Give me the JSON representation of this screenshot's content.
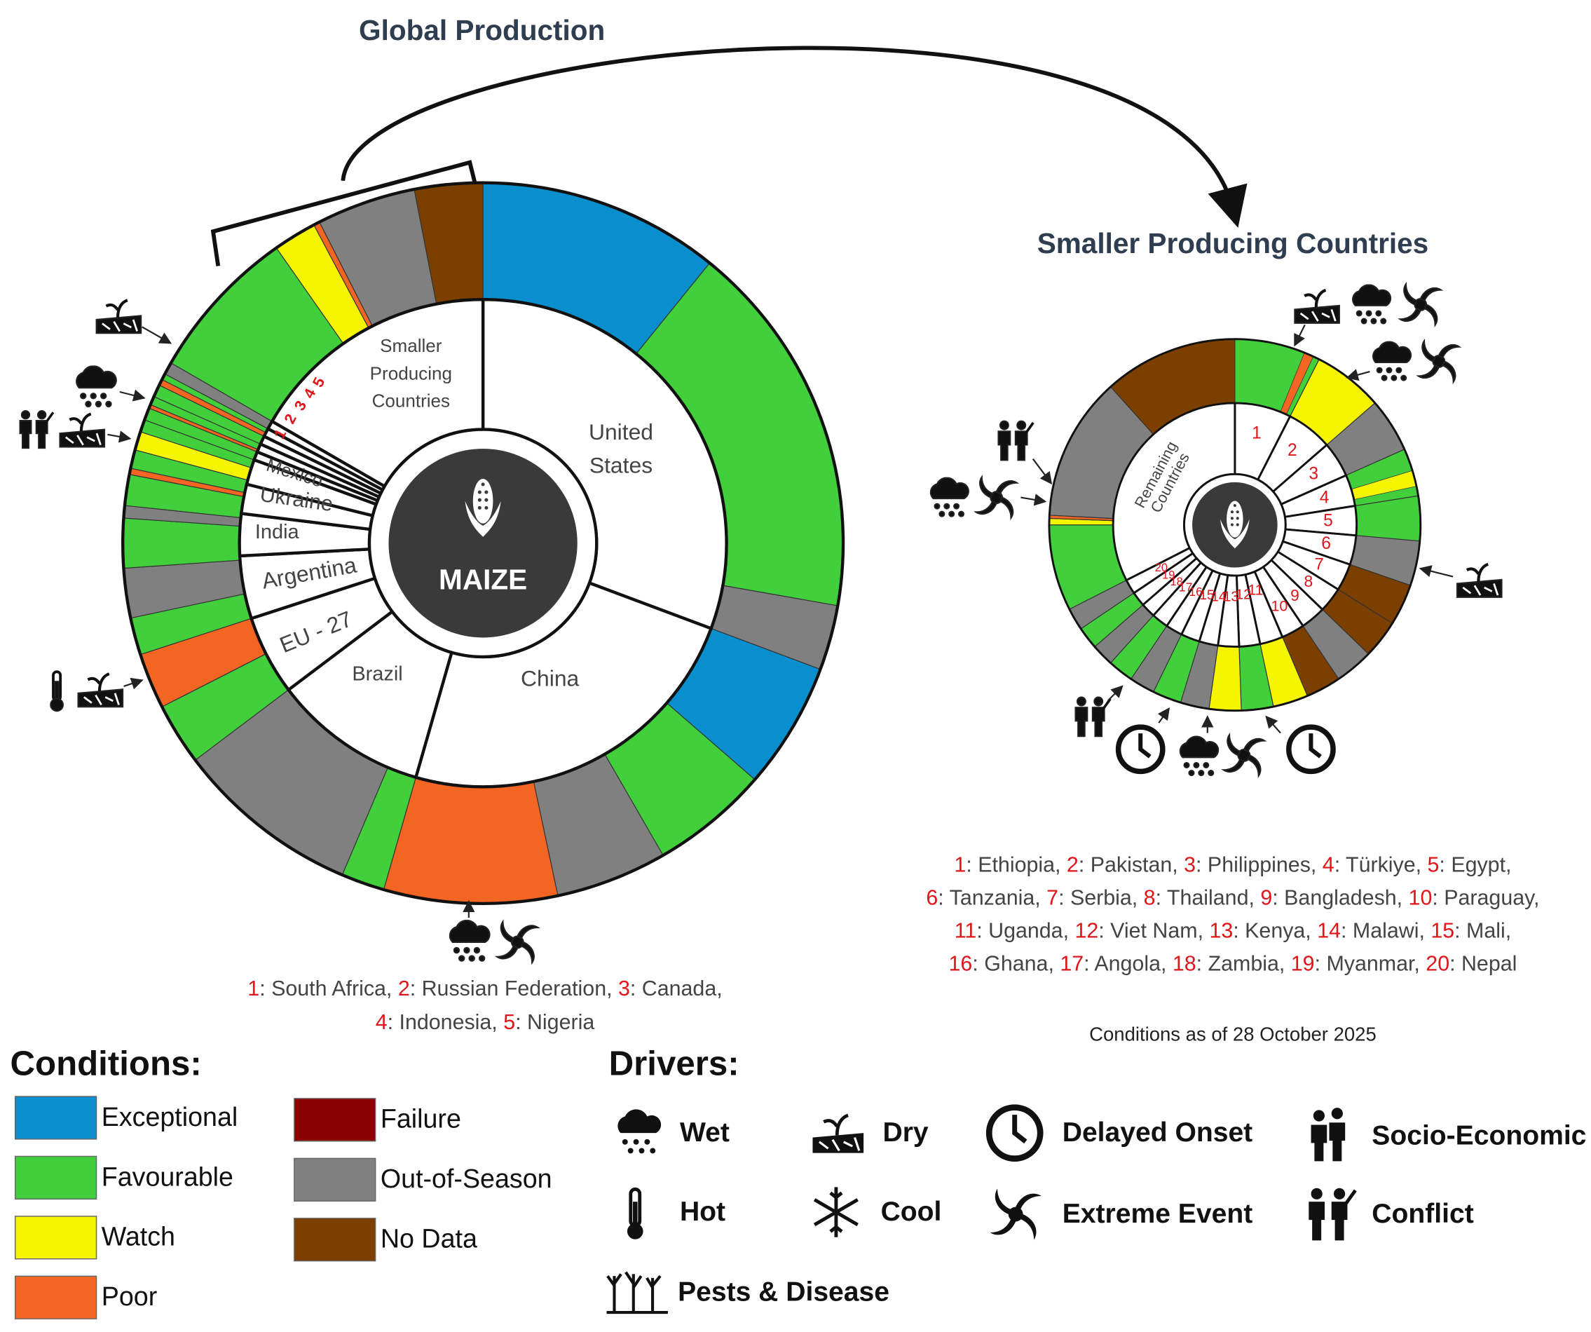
{
  "titles": {
    "global": "Global Production",
    "smaller": "Smaller Producing Countries"
  },
  "crop": "MAIZE",
  "global_wheel": {
    "countries": [
      {
        "lines": [
          "United",
          "States"
        ]
      },
      {
        "lines": [
          "China"
        ]
      },
      {
        "lines": [
          "Brazil"
        ]
      },
      {
        "lines": [
          "EU - 27"
        ]
      },
      {
        "lines": [
          "Argentina"
        ]
      },
      {
        "lines": [
          "India"
        ]
      },
      {
        "lines": [
          "Ukraine"
        ]
      },
      {
        "lines": [
          "Mexico"
        ]
      },
      {
        "lines": [
          "1"
        ]
      },
      {
        "lines": [
          "2"
        ]
      },
      {
        "lines": [
          "3"
        ]
      },
      {
        "lines": [
          "4"
        ]
      },
      {
        "lines": [
          "5"
        ]
      },
      {
        "lines": [
          "Smaller",
          "Producing",
          "Countries"
        ]
      }
    ],
    "key": [
      [
        {
          "num": "1",
          "text": ": South Africa, "
        },
        {
          "num": "2",
          "text": ": Russian Federation, "
        },
        {
          "num": "3",
          "text": ": Canada,"
        }
      ],
      [
        {
          "num": "4",
          "text": ": Indonesia, "
        },
        {
          "num": "5",
          "text": ": Nigeria"
        }
      ]
    ]
  },
  "smaller_wheel": {
    "remaining": [
      "Remaining",
      "Countries"
    ],
    "numbers": [
      "1",
      "2",
      "3",
      "4",
      "5",
      "6",
      "7",
      "8",
      "9",
      "10",
      "11",
      "12",
      "13",
      "14",
      "15",
      "16",
      "17",
      "18",
      "19",
      "20"
    ],
    "key": [
      [
        {
          "num": "1",
          "text": ": Ethiopia, "
        },
        {
          "num": "2",
          "text": ": Pakistan, "
        },
        {
          "num": "3",
          "text": ": Philippines, "
        },
        {
          "num": "4",
          "text": ": Türkiye, "
        },
        {
          "num": "5",
          "text": ": Egypt,"
        }
      ],
      [
        {
          "num": "6",
          "text": ": Tanzania, "
        },
        {
          "num": "7",
          "text": ": Serbia, "
        },
        {
          "num": "8",
          "text": ": Thailand, "
        },
        {
          "num": "9",
          "text": ": Bangladesh, "
        },
        {
          "num": "10",
          "text": ": Paraguay,"
        }
      ],
      [
        {
          "num": "11",
          "text": ": Uganda, "
        },
        {
          "num": "12",
          "text": ": Viet Nam, "
        },
        {
          "num": "13",
          "text": ": Kenya, "
        },
        {
          "num": "14",
          "text": ": Malawi, "
        },
        {
          "num": "15",
          "text": ": Mali,"
        }
      ],
      [
        {
          "num": "16",
          "text": ": Ghana, "
        },
        {
          "num": "17",
          "text": ": Angola, "
        },
        {
          "num": "18",
          "text": ": Zambia, "
        },
        {
          "num": "19",
          "text": ": Myanmar, "
        },
        {
          "num": "20",
          "text": ": Nepal"
        }
      ]
    ]
  },
  "date_note": "Conditions as of 28 October 2025",
  "conditions": {
    "heading": "Conditions:",
    "items": [
      {
        "label": "Exceptional",
        "color": "#0a8fce"
      },
      {
        "label": "Favourable",
        "color": "#41cf3c"
      },
      {
        "label": "Watch",
        "color": "#f5f500"
      },
      {
        "label": "Poor",
        "color": "#f26522"
      },
      {
        "label": "Failure",
        "color": "#8b0000"
      },
      {
        "label": "Out-of-Season",
        "color": "#808080"
      },
      {
        "label": "No Data",
        "color": "#7b3f00"
      }
    ]
  },
  "drivers": {
    "heading": "Drivers:",
    "items": [
      {
        "label": "Wet"
      },
      {
        "label": "Dry"
      },
      {
        "label": "Delayed Onset"
      },
      {
        "label": "Socio-Economic"
      },
      {
        "label": "Hot"
      },
      {
        "label": "Cool"
      },
      {
        "label": "Extreme Event"
      },
      {
        "label": "Conflict"
      },
      {
        "label": "Pests & Disease"
      }
    ]
  }
}
